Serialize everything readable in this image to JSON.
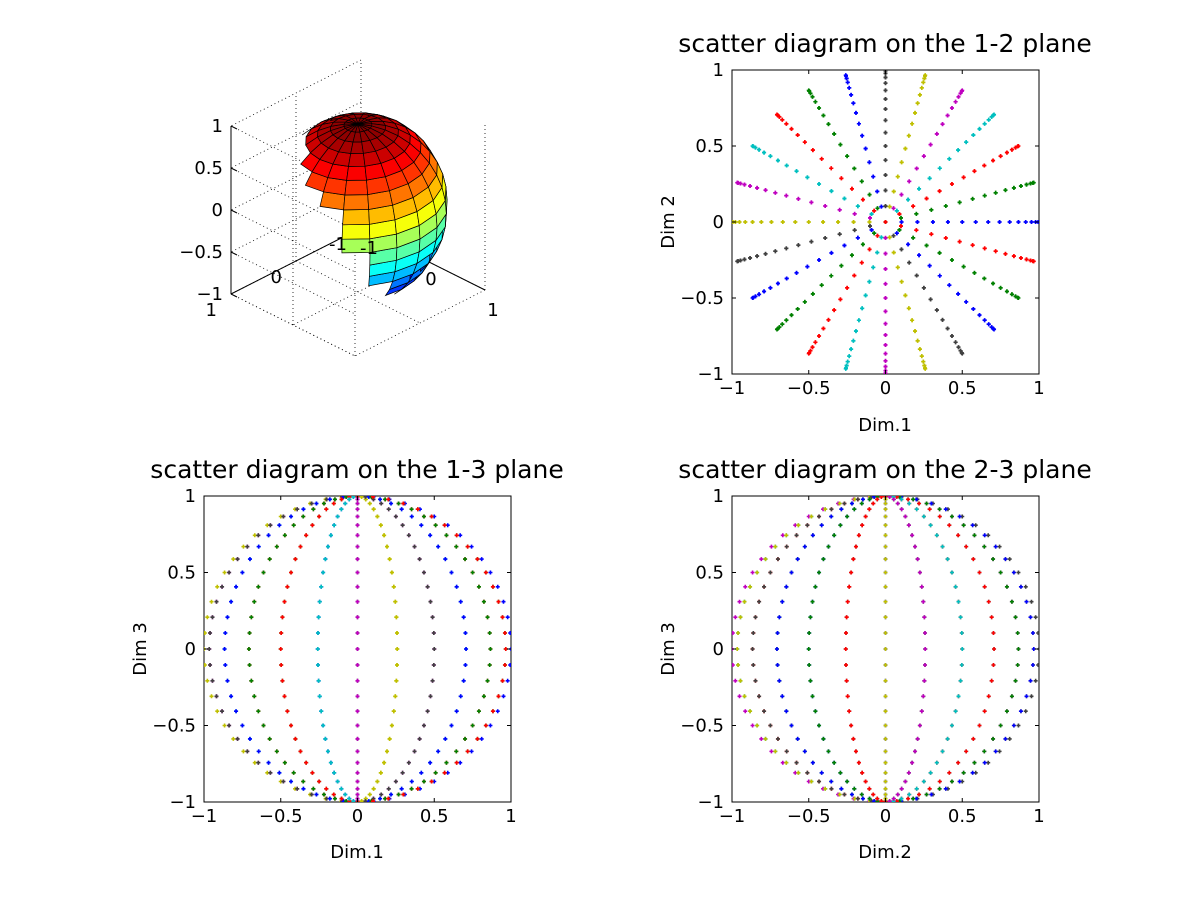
{
  "chart_data": [
    {
      "id": "sphere3d",
      "type": "surface3d",
      "title": "",
      "xlim": [
        -1,
        1
      ],
      "ylim": [
        -1,
        1
      ],
      "zlim": [
        -1,
        1
      ],
      "xticks": [
        -1,
        0,
        1
      ],
      "yticks": [
        -1,
        0,
        1
      ],
      "zticks": [
        -1,
        -0.5,
        0,
        0.5,
        1
      ],
      "xtick_labels": [
        "-1",
        "0",
        "1"
      ],
      "ytick_labels": [
        "-1",
        "0",
        "1"
      ],
      "ztick_labels": [
        "−1",
        "−0.5",
        "0",
        "0.5",
        "1"
      ],
      "colormap": "jet",
      "surface": "unit sphere",
      "grid": true
    },
    {
      "id": "plane12",
      "type": "scatter",
      "title": "scatter diagram on the 1-2 plane",
      "xlabel": "Dim.1",
      "ylabel": "Dim 2",
      "xlim": [
        -1,
        1
      ],
      "ylim": [
        -1,
        1
      ],
      "xtick_labels": [
        "−1",
        "−0.5",
        "0",
        "0.5",
        "1"
      ],
      "ytick_labels": [
        "−1",
        "−0.5",
        "0",
        "0.5",
        "1"
      ],
      "grid": false,
      "projection": "x-y of sphere points (longitude 0°–345° step 15°, latitude −90°–90° step 6°)"
    },
    {
      "id": "plane13",
      "type": "scatter",
      "title": "scatter diagram on the 1-3 plane",
      "xlabel": "Dim.1",
      "ylabel": "Dim 3",
      "xlim": [
        -1,
        1
      ],
      "ylim": [
        -1,
        1
      ],
      "xtick_labels": [
        "−1",
        "−0.5",
        "0",
        "0.5",
        "1"
      ],
      "ytick_labels": [
        "−1",
        "−0.5",
        "0",
        "0.5",
        "1"
      ],
      "grid": false,
      "projection": "x-z of sphere points"
    },
    {
      "id": "plane23",
      "type": "scatter",
      "title": "scatter diagram on the 2-3 plane",
      "xlabel": "Dim.2",
      "ylabel": "Dim 3",
      "xlim": [
        -1,
        1
      ],
      "ylim": [
        -1,
        1
      ],
      "xtick_labels": [
        "−1",
        "−0.5",
        "0",
        "0.5",
        "1"
      ],
      "ytick_labels": [
        "−1",
        "−0.5",
        "0",
        "0.5",
        "1"
      ],
      "grid": false,
      "projection": "y-z of sphere points"
    }
  ],
  "sphere_points": {
    "longitude_step_deg": 15,
    "longitude_count": 24,
    "latitude_step_deg": 6,
    "latitude_min_deg": -90,
    "latitude_max_deg": 90
  },
  "series_colors": [
    "#0000ff",
    "#008000",
    "#ff0000",
    "#00bfbf",
    "#bf00bf",
    "#bfbf00",
    "#404040"
  ]
}
